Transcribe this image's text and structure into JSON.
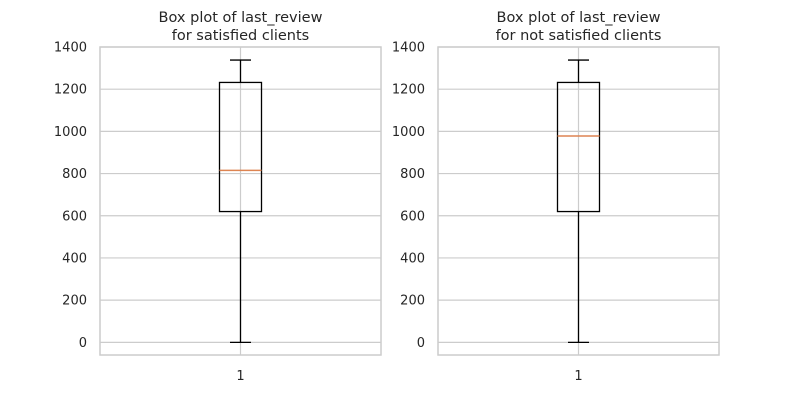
{
  "chart_data": [
    {
      "type": "box",
      "title_lines": [
        "Box plot of last_review",
        "for satisfied clients"
      ],
      "categories": [
        "1"
      ],
      "ylim": [
        -60,
        1400
      ],
      "yticks": [
        0,
        200,
        400,
        600,
        800,
        1000,
        1200,
        1400
      ],
      "ytick_labels": [
        "0",
        "200",
        "400",
        "600",
        "800",
        "1000",
        "1200",
        "1400"
      ],
      "grid": true,
      "box": {
        "whisker_low": 0,
        "q1": 620,
        "median": 815,
        "q3": 1232,
        "whisker_high": 1338
      },
      "colors": {
        "median": "#dd8452",
        "box": "#000000"
      }
    },
    {
      "type": "box",
      "title_lines": [
        "Box plot of last_review",
        "for not satisfied clients"
      ],
      "categories": [
        "1"
      ],
      "ylim": [
        -60,
        1400
      ],
      "yticks": [
        0,
        200,
        400,
        600,
        800,
        1000,
        1200,
        1400
      ],
      "ytick_labels": [
        "0",
        "200",
        "400",
        "600",
        "800",
        "1000",
        "1200",
        "1400"
      ],
      "grid": true,
      "box": {
        "whisker_low": 0,
        "q1": 620,
        "median": 978,
        "q3": 1232,
        "whisker_high": 1338
      },
      "colors": {
        "median": "#dd8452",
        "box": "#000000"
      }
    }
  ]
}
